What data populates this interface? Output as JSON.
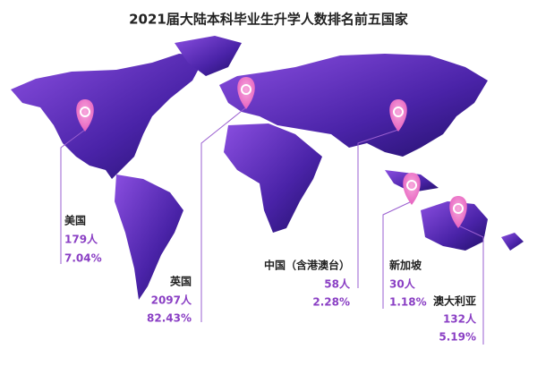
{
  "title": "2021届大陆本科毕业生升学人数排名前五国家",
  "locations": [
    {
      "name": "美国",
      "count": "179人",
      "share": "7.04%"
    },
    {
      "name": "英国",
      "count": "2097人",
      "share": "82.43%"
    },
    {
      "name": "中国（含港澳台）",
      "count": "58人",
      "share": "2.28%"
    },
    {
      "name": "新加坡",
      "count": "30人",
      "share": "1.18%"
    },
    {
      "name": "澳大利亚",
      "count": "132人",
      "share": "5.19%"
    }
  ]
}
